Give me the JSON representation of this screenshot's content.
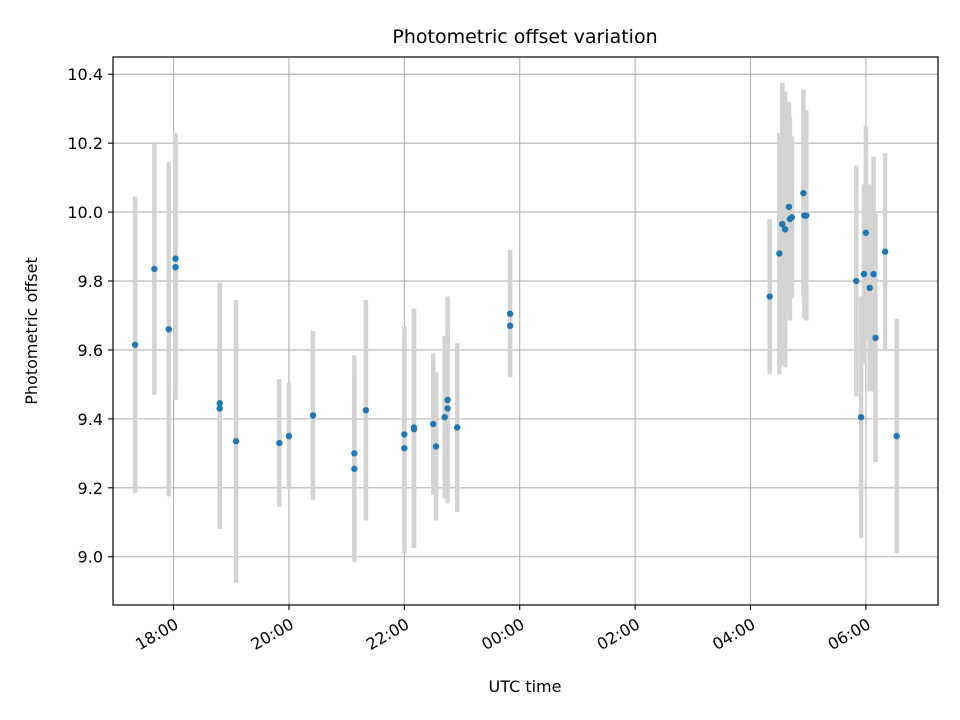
{
  "chart_data": {
    "type": "scatter",
    "title": "Photometric offset variation",
    "xlabel": "UTC time",
    "ylabel": "Photometric offset",
    "x_axis": "time (hours from 00:00 UTC on first night; negative = previous evening)",
    "xlim": [
      -7.05,
      7.25
    ],
    "ylim": [
      8.86,
      10.45
    ],
    "x_ticks": [
      {
        "value": -6,
        "label": "18:00"
      },
      {
        "value": -4,
        "label": "20:00"
      },
      {
        "value": -2,
        "label": "22:00"
      },
      {
        "value": 0,
        "label": "00:00"
      },
      {
        "value": 2,
        "label": "02:00"
      },
      {
        "value": 4,
        "label": "04:00"
      },
      {
        "value": 6,
        "label": "06:00"
      }
    ],
    "y_ticks": [
      {
        "value": 9.0,
        "label": "9.0"
      },
      {
        "value": 9.2,
        "label": "9.2"
      },
      {
        "value": 9.4,
        "label": "9.4"
      },
      {
        "value": 9.6,
        "label": "9.6"
      },
      {
        "value": 9.8,
        "label": "9.8"
      },
      {
        "value": 10.0,
        "label": "10.0"
      },
      {
        "value": 10.2,
        "label": "10.2"
      },
      {
        "value": 10.4,
        "label": "10.4"
      }
    ],
    "grid": true,
    "point_color": "#1f77b4",
    "errorbar_color": "#d3d3d3",
    "series": [
      {
        "x": [
          "17:20",
          "17:40",
          "17:55",
          "18:02",
          "18:02",
          "18:48",
          "18:48",
          "19:05",
          "19:50",
          "20:00",
          "20:25",
          "21:08",
          "21:08",
          "21:20",
          "22:00",
          "22:00",
          "22:10",
          "22:10",
          "22:30",
          "22:33",
          "22:42",
          "22:45",
          "22:45",
          "22:55",
          "23:50",
          "23:50",
          "04:20",
          "04:30",
          "04:33",
          "04:36",
          "04:40",
          "04:41",
          "04:43",
          "04:55",
          "04:56",
          "04:58",
          "05:50",
          "05:55",
          "05:58",
          "06:00",
          "06:04",
          "06:08",
          "06:10",
          "06:20",
          "06:32"
        ],
        "y": [
          9.615,
          9.835,
          9.66,
          9.84,
          9.865,
          9.43,
          9.445,
          9.335,
          9.33,
          9.35,
          9.41,
          9.3,
          9.255,
          9.425,
          9.315,
          9.355,
          9.375,
          9.37,
          9.385,
          9.32,
          9.405,
          9.43,
          9.455,
          9.375,
          9.705,
          9.67,
          9.755,
          9.88,
          9.965,
          9.95,
          10.015,
          9.98,
          9.985,
          10.055,
          9.99,
          9.99,
          9.8,
          9.405,
          9.82,
          9.94,
          9.78,
          9.82,
          9.635,
          9.885,
          9.35
        ],
        "yerr": [
          0.43,
          0.365,
          0.485,
          0.385,
          0.365,
          0.35,
          0.35,
          0.41,
          0.185,
          0.155,
          0.245,
          0.285,
          0.27,
          0.32,
          0.305,
          0.315,
          0.345,
          0.345,
          0.205,
          0.215,
          0.235,
          0.235,
          0.3,
          0.245,
          0.185,
          0.15,
          0.225,
          0.35,
          0.41,
          0.4,
          0.305,
          0.295,
          0.235,
          0.3,
          0.3,
          0.305,
          0.335,
          0.35,
          0.26,
          0.31,
          0.3,
          0.34,
          0.36,
          0.285,
          0.34
        ]
      }
    ]
  }
}
